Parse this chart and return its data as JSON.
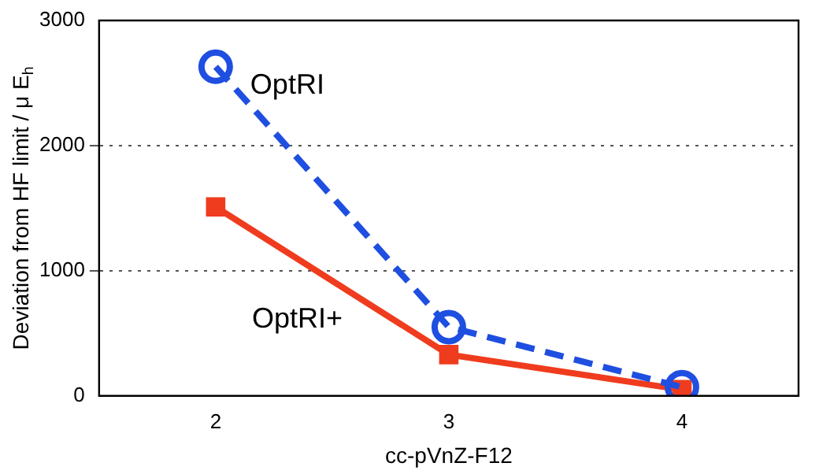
{
  "chart_data": {
    "type": "line",
    "xlabel": "cc-pVnZ-F12",
    "ylabel": "Deviation from HF limit / μ E$_{h}$",
    "categories": [
      "2",
      "3",
      "4"
    ],
    "series": [
      {
        "name": "OptRI",
        "color": "#1f4fe0",
        "values": [
          2630,
          550,
          70
        ],
        "line_style": "dashed",
        "marker": "circle"
      },
      {
        "name": "OptRI+",
        "color": "#f03c1e",
        "values": [
          1510,
          330,
          50
        ],
        "line_style": "solid",
        "marker": "square"
      }
    ],
    "ylim": [
      0,
      3000
    ],
    "yticks": [
      0,
      1000,
      2000,
      3000
    ],
    "grid": "y",
    "legend": false
  }
}
